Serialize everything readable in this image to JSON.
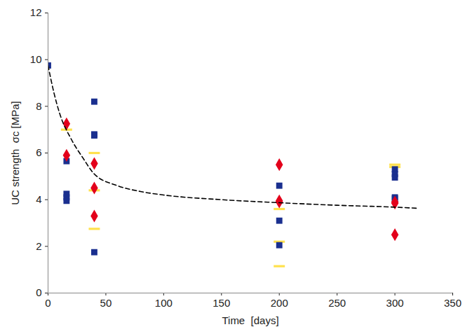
{
  "chart_data": {
    "type": "scatter",
    "x_label": "Time  [days]",
    "y_label": "UC strength  σc [MPa]",
    "xlim": [
      0,
      350
    ],
    "xticks": [
      0,
      50,
      100,
      150,
      200,
      250,
      300,
      350
    ],
    "ylim": [
      0,
      12
    ],
    "yticks": [
      0,
      2,
      4,
      6,
      8,
      10,
      12
    ],
    "grid": false,
    "series": [
      {
        "type": "scatter",
        "color": "#ffe14d",
        "marker": "dash",
        "x": [
          16,
          40,
          40,
          40,
          200,
          200,
          200,
          300,
          300
        ],
        "values": [
          7.0,
          6.0,
          4.4,
          2.75,
          3.6,
          2.2,
          1.15,
          5.5,
          5.4
        ]
      },
      {
        "type": "scatter",
        "color": "#1a2f8f",
        "marker": "square",
        "x": [
          0,
          16,
          16,
          16,
          16,
          40,
          40,
          40,
          40,
          200,
          200,
          200,
          300,
          300,
          300,
          300,
          300
        ],
        "values": [
          9.75,
          5.65,
          4.25,
          4.1,
          3.95,
          8.2,
          6.8,
          6.75,
          1.75,
          4.6,
          3.1,
          2.05,
          5.3,
          5.1,
          4.95,
          4.1,
          4.05
        ]
      },
      {
        "type": "scatter",
        "color": "#e3001b",
        "marker": "diamond",
        "x": [
          16,
          16,
          40,
          40,
          40,
          200,
          200,
          200,
          300,
          300,
          300
        ],
        "values": [
          7.25,
          5.9,
          5.55,
          4.5,
          3.3,
          5.5,
          3.95,
          3.9,
          3.85,
          3.9,
          2.5
        ]
      },
      {
        "type": "line",
        "color": "#000000",
        "line_style": "dashed",
        "x": [
          0,
          5,
          10,
          20,
          30,
          40,
          60,
          80,
          100,
          150,
          200,
          250,
          300,
          320
        ],
        "values": [
          9.75,
          8.6,
          7.7,
          6.6,
          5.8,
          5.1,
          4.6,
          4.35,
          4.2,
          4.0,
          3.87,
          3.76,
          3.68,
          3.63
        ]
      }
    ]
  }
}
